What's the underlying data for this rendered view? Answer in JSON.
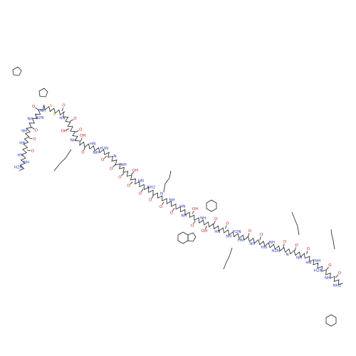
{
  "molecule": {
    "atoms": [
      "H2N",
      "NH",
      "HN",
      "O",
      "HN",
      "O",
      "NH",
      "O",
      "NH",
      "H2N",
      "O",
      "NH",
      "S",
      "S",
      "O",
      "HN",
      "O",
      "OH",
      "O",
      "NH",
      "OH",
      "O",
      "HN",
      "NH",
      "H2N",
      "O",
      "N",
      "O",
      "NH",
      "O",
      "OH",
      "O",
      "HN",
      "O",
      "NH2",
      "O",
      "N",
      "O",
      "NH",
      "O",
      "HN",
      "NH",
      "OH",
      "O",
      "NH",
      "OH",
      "O",
      "HN",
      "O",
      "NH",
      "H2N",
      "HN",
      "O",
      "NH",
      "O",
      "HN",
      "NH",
      "H2N",
      "O",
      "N",
      "O",
      "NH",
      "O",
      "HN",
      "NH",
      "H2N",
      "O",
      "NH",
      "O",
      "NH2"
    ]
  }
}
